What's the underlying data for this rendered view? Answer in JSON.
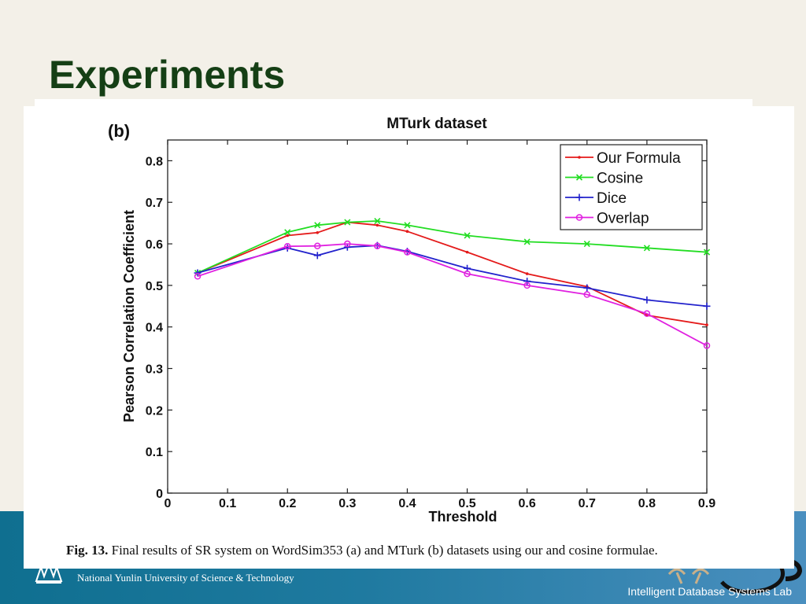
{
  "slide": {
    "title": "Experiments",
    "university": "National Yunlin University of Science & Technology",
    "lab": "Intelligent Database Systems Lab"
  },
  "caption": {
    "label": "Fig. 13.",
    "text": "Final results of SR system on WordSim353 (a) and MTurk (b) datasets using our and cosine formulae."
  },
  "chart_data": {
    "type": "line",
    "panel_label": "(b)",
    "title": "MTurk dataset",
    "xlabel": "Threshold",
    "ylabel": "Pearson Correlation Coefficient",
    "xlim": [
      0,
      0.9
    ],
    "ylim": [
      0,
      0.85
    ],
    "xticks": [
      0,
      0.1,
      0.2,
      0.3,
      0.4,
      0.5,
      0.6,
      0.7,
      0.8,
      0.9
    ],
    "xtick_labels": [
      "0",
      "0.1",
      "0.2",
      "0.3",
      "0.4",
      "0.5",
      "0.6",
      "0.7",
      "0.8",
      "0.9"
    ],
    "yticks": [
      0,
      0.1,
      0.2,
      0.3,
      0.4,
      0.5,
      0.6,
      0.7,
      0.8
    ],
    "ytick_labels": [
      "0",
      "0.1",
      "0.2",
      "0.3",
      "0.4",
      "0.5",
      "0.6",
      "0.7",
      "0.8"
    ],
    "grid": false,
    "legend_position": "top-right",
    "x": [
      0.05,
      0.2,
      0.25,
      0.3,
      0.35,
      0.4,
      0.5,
      0.6,
      0.7,
      0.8,
      0.9
    ],
    "series": [
      {
        "name": "Our Formula",
        "color": "#e41a1a",
        "marker": "dot",
        "values": [
          0.53,
          0.62,
          0.627,
          0.652,
          0.645,
          0.63,
          0.58,
          0.528,
          0.497,
          0.428,
          0.405
        ]
      },
      {
        "name": "Cosine",
        "color": "#22dd22",
        "marker": "x",
        "values": [
          0.53,
          0.628,
          0.645,
          0.652,
          0.655,
          0.645,
          0.62,
          0.605,
          0.6,
          0.59,
          0.58
        ]
      },
      {
        "name": "Dice",
        "color": "#2222cc",
        "marker": "plus",
        "values": [
          0.53,
          0.59,
          0.572,
          0.592,
          0.596,
          0.582,
          0.541,
          0.51,
          0.494,
          0.465,
          0.45
        ]
      },
      {
        "name": "Overlap",
        "color": "#e020e0",
        "marker": "circle",
        "values": [
          0.522,
          0.594,
          0.595,
          0.6,
          0.595,
          0.58,
          0.528,
          0.5,
          0.478,
          0.432,
          0.355
        ]
      }
    ]
  }
}
